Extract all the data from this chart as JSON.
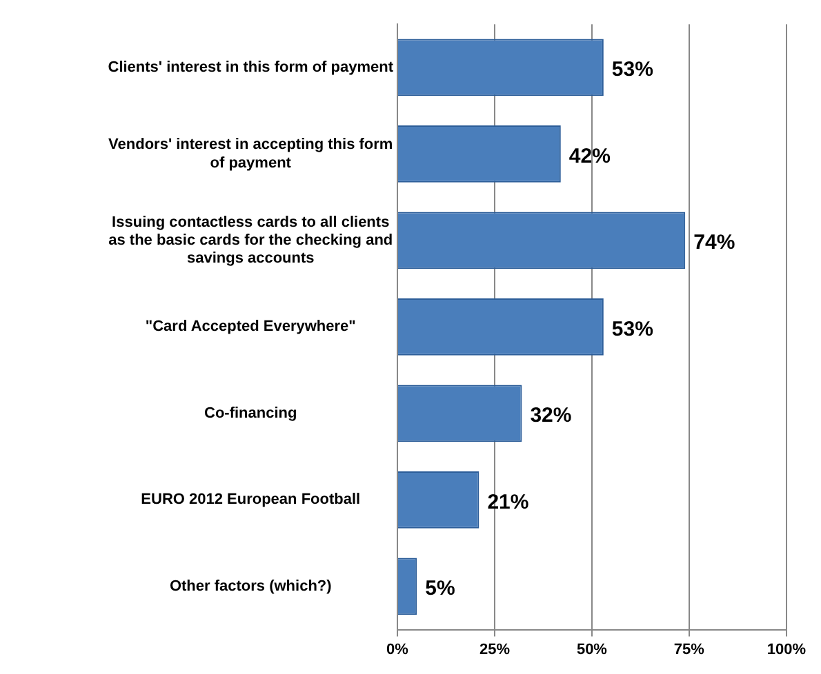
{
  "chart_data": {
    "type": "bar",
    "orientation": "horizontal",
    "categories": [
      "Clients' interest in this form of payment",
      "Vendors' interest in accepting this form of payment",
      "Issuing contactless cards to all clients as the basic cards for the checking and savings accounts",
      "\"Card Accepted Everywhere\"",
      "Co-financing",
      "EURO 2012 European Football",
      "Other factors (which?)"
    ],
    "values": [
      53,
      42,
      74,
      53,
      32,
      21,
      5
    ],
    "value_labels": [
      "53%",
      "42%",
      "74%",
      "53%",
      "32%",
      "21%",
      "5%"
    ],
    "color": "#4a7ebb",
    "xlim": [
      0,
      100
    ],
    "xticks": [
      {
        "value": 0,
        "label": "0%"
      },
      {
        "value": 25,
        "label": "25%"
      },
      {
        "value": 50,
        "label": "50%"
      },
      {
        "value": 75,
        "label": "75%"
      },
      {
        "value": 100,
        "label": "100%"
      }
    ],
    "grid": "x",
    "legend": false
  }
}
